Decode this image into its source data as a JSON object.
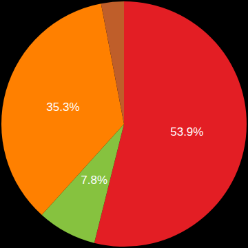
{
  "chart_data": {
    "type": "pie",
    "values": [
      53.9,
      7.8,
      35.3,
      3.0
    ],
    "value_labels": [
      "53.9%",
      "7.8%",
      "35.3%",
      null
    ],
    "colors": [
      "#e31e24",
      "#86c23f",
      "#ff8000",
      "#bf5e2a"
    ],
    "data_labels": true
  }
}
